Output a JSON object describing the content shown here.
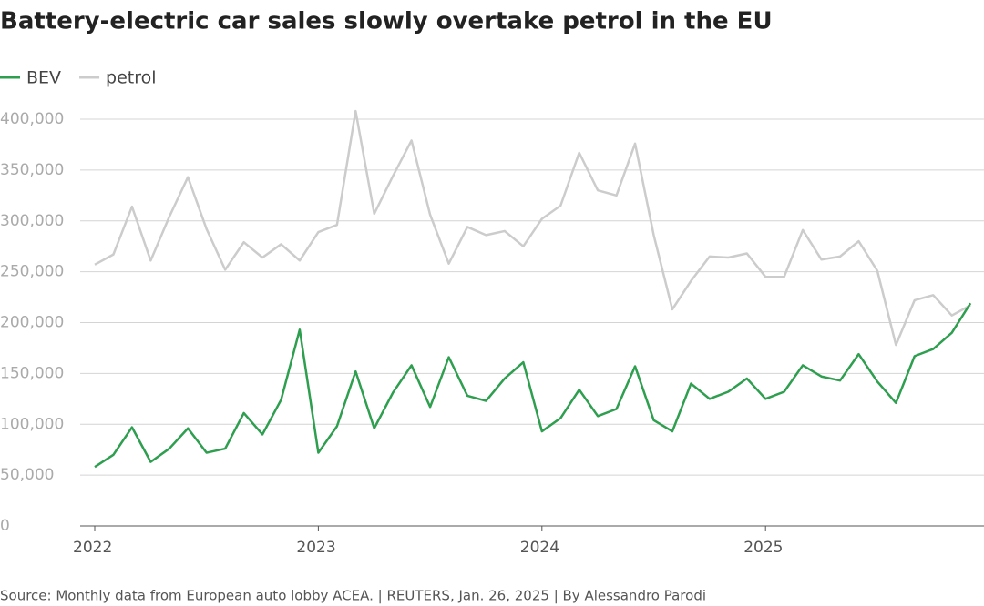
{
  "chart_data": {
    "type": "line",
    "title": "Battery-electric car sales slowly overtake petrol in the EU",
    "source": "Source: Monthly data from European auto lobby ACEA. | REUTERS, Jan. 26, 2025 | By Alessandro Parodi",
    "categories": [
      "2022",
      null,
      null,
      null,
      null,
      null,
      null,
      null,
      null,
      null,
      null,
      null,
      "2023",
      null,
      null,
      null,
      null,
      null,
      null,
      null,
      null,
      null,
      null,
      null,
      "2024",
      null,
      null,
      null,
      null,
      null,
      null,
      null,
      null,
      null,
      null,
      null,
      "2025",
      null,
      null,
      null,
      null,
      null,
      null,
      null,
      null,
      null,
      null,
      null
    ],
    "series": [
      {
        "name": "BEV",
        "color": "#2e9e4f",
        "values": [
          58000,
          70000,
          97000,
          63000,
          76000,
          96000,
          72000,
          76000,
          111000,
          90000,
          124000,
          193000,
          72000,
          98000,
          152000,
          96000,
          131000,
          158000,
          117000,
          166000,
          128000,
          123000,
          145000,
          161000,
          93000,
          106000,
          134000,
          108000,
          115000,
          157000,
          104000,
          93000,
          140000,
          125000,
          132000,
          145000,
          125000,
          132000,
          158000,
          147000,
          143000,
          169000,
          142000,
          121000,
          167000,
          174000,
          190000,
          219000
        ]
      },
      {
        "name": "petrol",
        "color": "#cccccc",
        "values": [
          257000,
          267000,
          314000,
          261000,
          304000,
          343000,
          292000,
          252000,
          279000,
          264000,
          277000,
          261000,
          289000,
          296000,
          408000,
          307000,
          344000,
          379000,
          306000,
          258000,
          294000,
          286000,
          290000,
          275000,
          302000,
          315000,
          367000,
          330000,
          325000,
          376000,
          286000,
          213000,
          241000,
          265000,
          264000,
          268000,
          245000,
          245000,
          291000,
          262000,
          265000,
          280000,
          251000,
          178000,
          222000,
          227000,
          207000,
          217000
        ]
      }
    ],
    "ylim": [
      0,
      400000
    ],
    "yticks": [
      0,
      {
        "value": 50000,
        "label": "50,000"
      },
      {
        "value": 100000,
        "label": "100,000"
      },
      {
        "value": 150000,
        "label": "150,000"
      },
      {
        "value": 200000,
        "label": "200,000"
      },
      {
        "value": 250000,
        "label": "250,000"
      },
      {
        "value": 300000,
        "label": "300,000"
      },
      {
        "value": 350000,
        "label": "350,000"
      },
      {
        "value": 400000,
        "label": "400,000"
      }
    ],
    "grid": true
  }
}
